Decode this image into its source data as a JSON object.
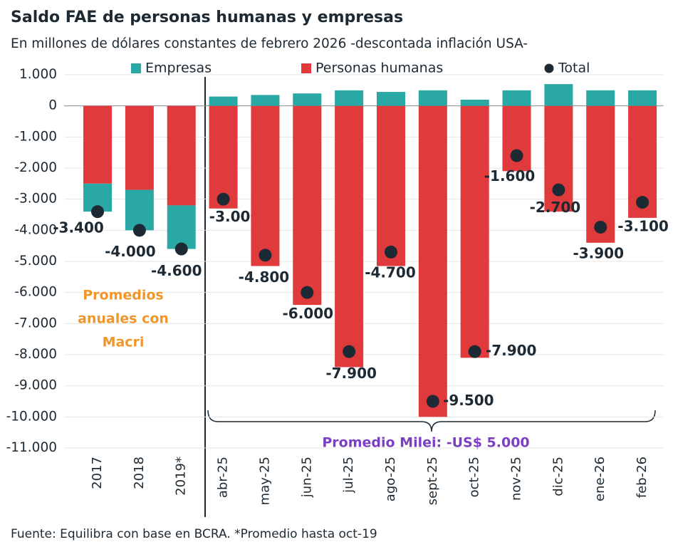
{
  "chart_data": {
    "type": "bar",
    "title": "Saldo FAE de personas humanas y empresas",
    "subtitle": "En millones de dólares constantes de febrero 2026 -descontada inflación USA-",
    "source": "Fuente: Equilibra con base en BCRA. *Promedio hasta oct-19",
    "annotations": {
      "macri": [
        "Promedios",
        "anuales con",
        "Macri"
      ],
      "milei": "Promedio Milei: -US$ 5.000"
    },
    "categories": [
      "2017",
      "2018",
      "2019*",
      "abr-25",
      "may-25",
      "jun-25",
      "jul-25",
      "ago-25",
      "sept-25",
      "oct-25",
      "nov-25",
      "dic-25",
      "ene-26",
      "feb-26"
    ],
    "series": [
      {
        "name": "Empresas",
        "color": "#2aa8a6",
        "values": [
          -900,
          -1300,
          -1400,
          300,
          350,
          400,
          500,
          450,
          500,
          200,
          500,
          700,
          500,
          500
        ]
      },
      {
        "name": "Personas humanas",
        "color": "#e03a3c",
        "values": [
          -2500,
          -2700,
          -3200,
          -3300,
          -5150,
          -6400,
          -8400,
          -5150,
          -10000,
          -8100,
          -2100,
          -3400,
          -4400,
          -3600
        ]
      },
      {
        "name": "Total",
        "color": "#1d2a33",
        "values": [
          -3400,
          -4000,
          -4600,
          -3000,
          -4800,
          -6000,
          -7900,
          -4700,
          -9500,
          -7900,
          -1600,
          -2700,
          -3900,
          -3100
        ],
        "value_labels": [
          "-3.400",
          "-4.000",
          "-4.600",
          "-3.000",
          "-4.800",
          "-6.000",
          "-7.900",
          "-4.700",
          "-9.500",
          "-7.900",
          "-1.600",
          "-2.700",
          "-3.900",
          "-3.100"
        ]
      }
    ],
    "ylim": [
      1000,
      -11000
    ],
    "yticks": [
      {
        "value": 1000,
        "label": "1.000"
      },
      0,
      {
        "value": -1000,
        "label": "-1.000"
      },
      {
        "value": -2000,
        "label": "-2.000"
      },
      {
        "value": -3000,
        "label": "-3.000"
      },
      {
        "value": -4000,
        "label": "-4.000"
      },
      {
        "value": -5000,
        "label": "-5.000"
      },
      {
        "value": -6000,
        "label": "-6.000"
      },
      {
        "value": -7000,
        "label": "-7.000"
      },
      {
        "value": -8000,
        "label": "-8.000"
      },
      {
        "value": -9000,
        "label": "-9.000"
      },
      {
        "value": -10000,
        "label": "-10.000"
      },
      {
        "value": -11000,
        "label": "-11.000"
      }
    ],
    "grid": true
  }
}
